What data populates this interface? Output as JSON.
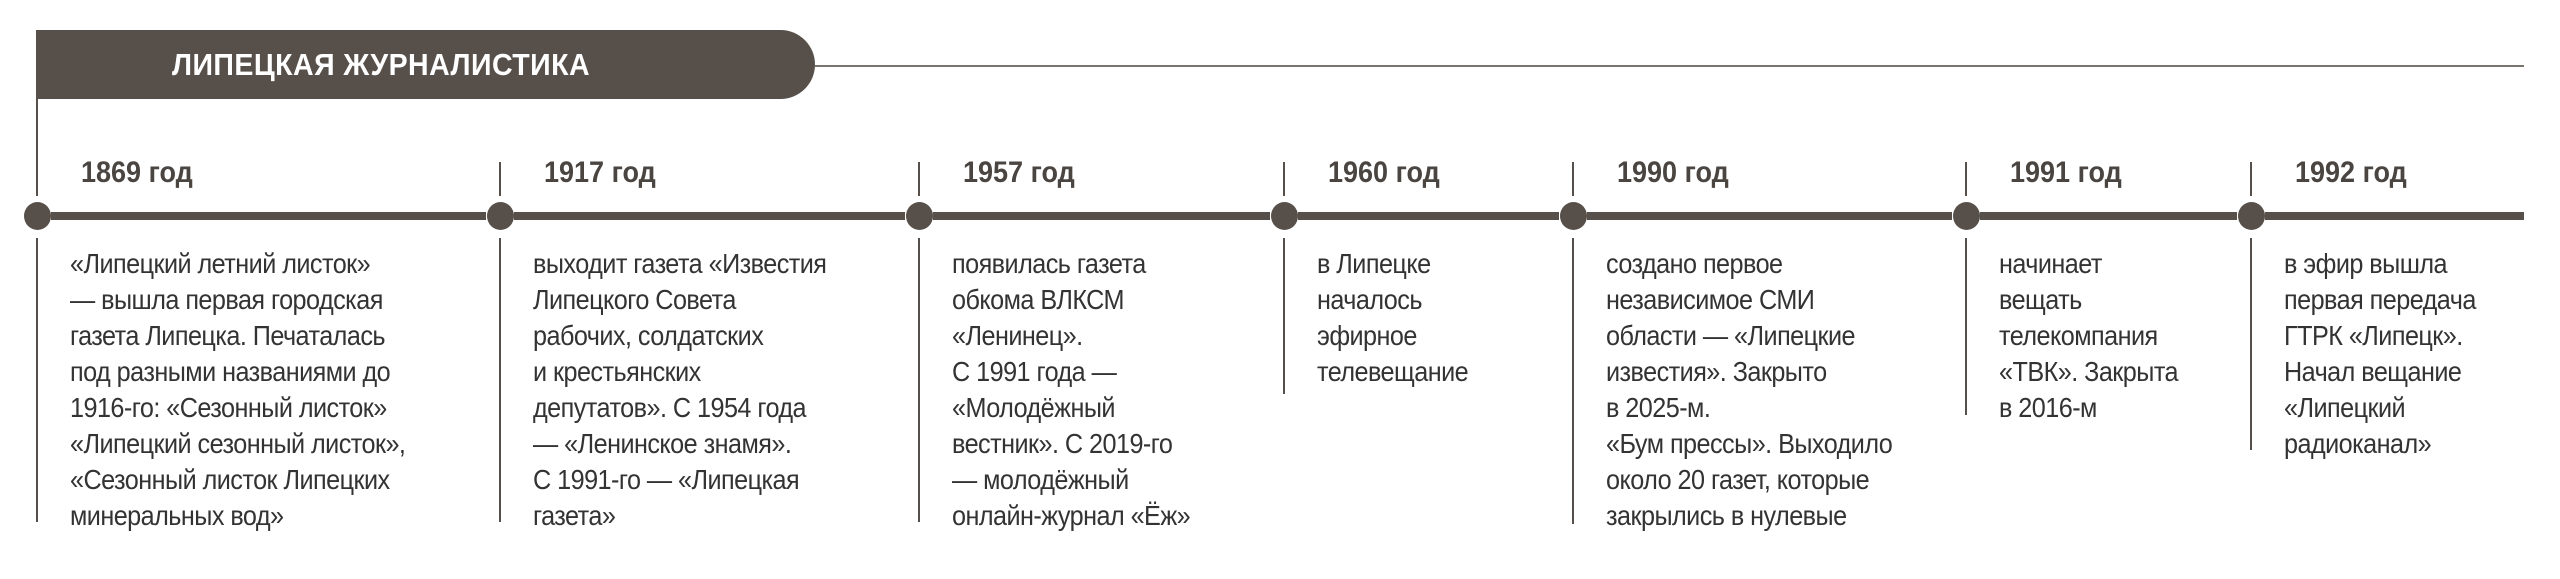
{
  "title": "ЛИПЕЦКАЯ ЖУРНАЛИСТИКА",
  "colors": {
    "accent": "#57504a",
    "text": "#333333",
    "title_text": "#ffffff"
  },
  "events": [
    {
      "year": "1869 год",
      "lines": [
        "«Липецкий летний листок»",
        "— вышла первая городская",
        "газета Липецка. Печаталась",
        "под разными названиями до",
        "1916-го:  «Сезонный листок»",
        "«Липецкий сезонный листок»,",
        "«Сезонный листок Липецких",
        "минеральных вод»"
      ]
    },
    {
      "year": "1917 год",
      "lines": [
        "выходит газета «Известия",
        "Липецкого Совета",
        "рабочих, солдатских",
        "и крестьянских",
        "депутатов». С 1954 года",
        "— «Ленинское знамя».",
        "С 1991-го — «Липецкая",
        "газета»"
      ]
    },
    {
      "year": "1957 год",
      "lines": [
        "появилась газета",
        "обкома ВЛКСМ",
        "«Ленинец».",
        "С 1991 года —",
        "«Молодёжный",
        "вестник». С 2019-го",
        "— молодёжный",
        "онлайн-журнал «Ёж»"
      ]
    },
    {
      "year": "1960 год",
      "lines": [
        "в Липецке",
        "началось",
        "эфирное",
        "телевещание"
      ]
    },
    {
      "year": "1990 год",
      "lines": [
        "создано первое",
        "независимое СМИ",
        "области — «Липецкие",
        "известия». Закрыто",
        "в 2025-м.",
        "«Бум прессы». Выходило",
        "около 20 газет, которые",
        "закрылись в нулевые"
      ]
    },
    {
      "year": "1991 год",
      "lines": [
        "начинает",
        "вещать",
        "телекомпания",
        "«ТВК». Закрыта",
        "в 2016-м"
      ]
    },
    {
      "year": "1992 год",
      "lines": [
        "в эфир вышла",
        "первая передача",
        "ГТРК «Липецк».",
        "Начал вещание",
        "«Липецкий",
        "радиоканал»"
      ]
    }
  ]
}
